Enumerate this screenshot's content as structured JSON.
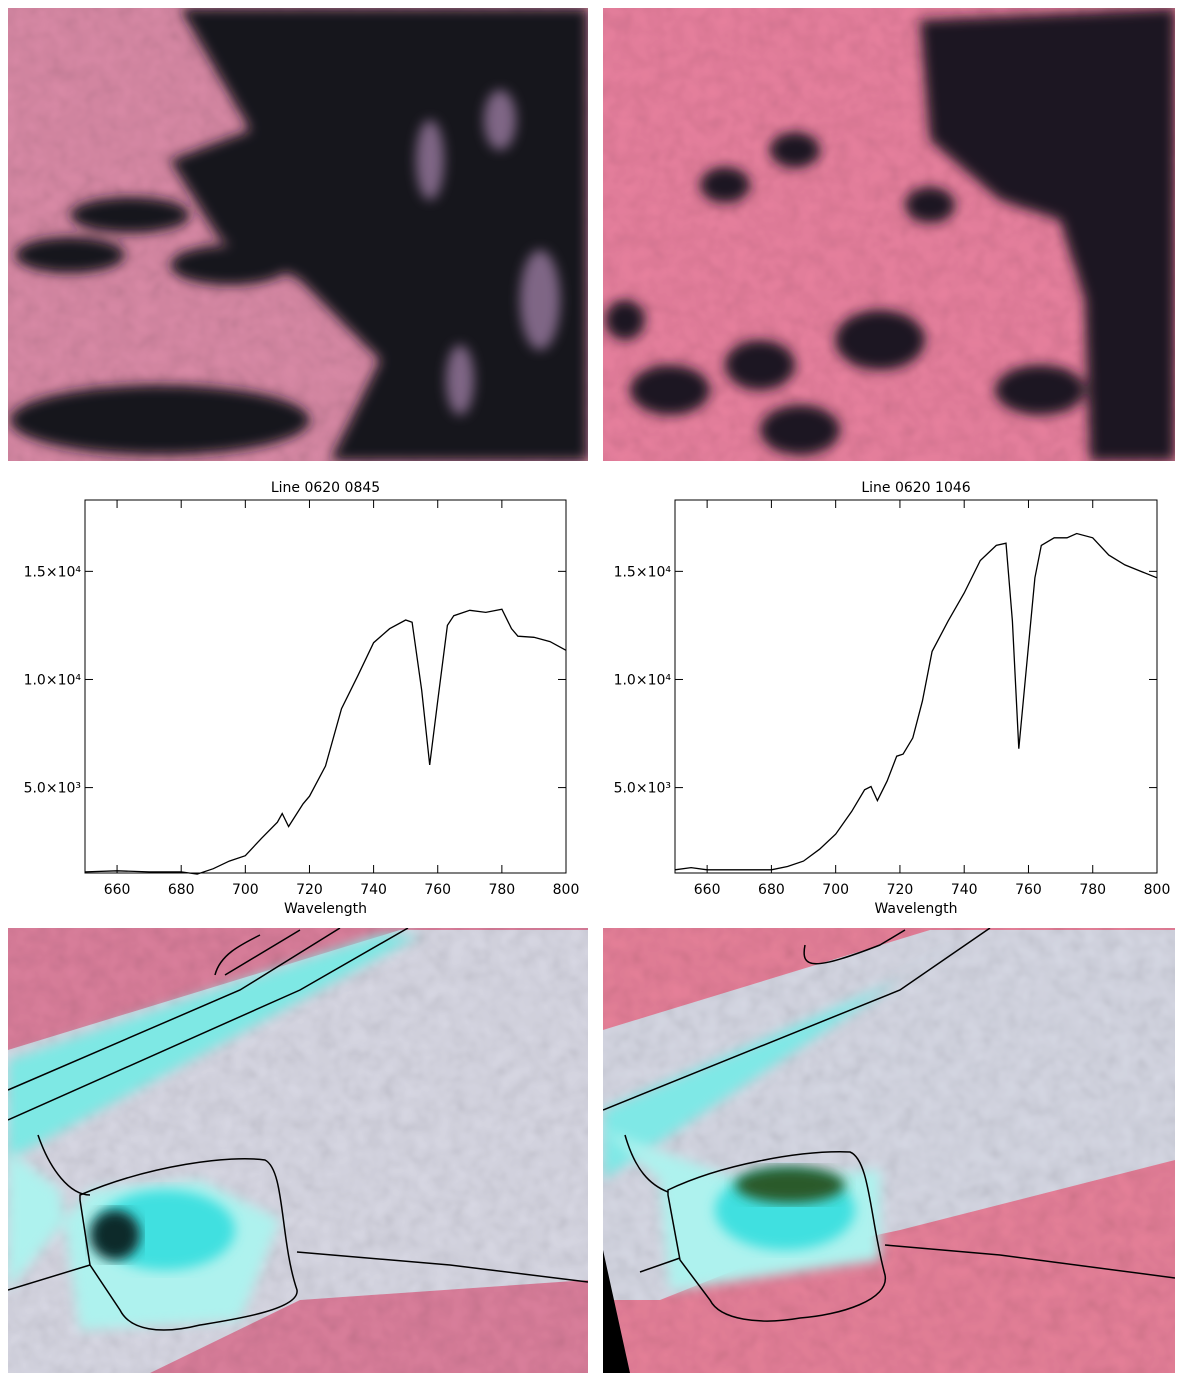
{
  "chart_data": [
    {
      "type": "line",
      "title": "Line 0620 0845",
      "x_label": "Wavelength",
      "color": "#000000",
      "x": [
        650,
        660,
        670,
        680,
        685,
        690,
        695,
        700,
        705,
        710,
        711.5,
        713.5,
        718,
        720,
        725,
        730,
        735,
        740,
        745,
        750,
        752,
        755,
        757.5,
        760,
        763,
        765,
        770,
        775,
        780,
        783,
        785,
        790,
        795,
        800
      ],
      "values": [
        1100,
        1150,
        1100,
        1100,
        1000,
        1250,
        1600,
        1850,
        2650,
        3400,
        3800,
        3200,
        4250,
        4600,
        6000,
        8650,
        10150,
        11700,
        12350,
        12750,
        12650,
        9500,
        6050,
        9000,
        12500,
        12950,
        13200,
        13100,
        13250,
        12350,
        12000,
        11950,
        11750,
        11350
      ],
      "xlim": [
        650,
        800
      ],
      "xticks": [
        660,
        680,
        700,
        720,
        740,
        760,
        780,
        800
      ],
      "ylim": [
        1050,
        18300
      ],
      "yticks": [
        {
          "value": 5000,
          "label": "5.0×10³"
        },
        {
          "value": 10000,
          "label": "1.0×10⁴"
        },
        {
          "value": 15000,
          "label": "1.5×10⁴"
        }
      ]
    },
    {
      "type": "line",
      "title": "Line 0620 1046",
      "x_label": "Wavelength",
      "color": "#000000",
      "x": [
        650,
        655,
        660,
        670,
        680,
        685,
        690,
        695,
        700,
        705,
        709,
        711,
        713,
        716,
        719,
        721,
        724,
        727,
        730,
        735,
        740,
        745,
        750,
        753,
        755,
        757,
        759,
        762,
        764,
        768,
        772,
        775,
        780,
        785,
        790,
        795,
        800
      ],
      "values": [
        1200,
        1300,
        1200,
        1200,
        1200,
        1350,
        1600,
        2150,
        2850,
        3900,
        4900,
        5050,
        4400,
        5300,
        6450,
        6550,
        7300,
        9000,
        11300,
        12700,
        14000,
        15500,
        16200,
        16300,
        12700,
        6800,
        10000,
        14700,
        16200,
        16550,
        16550,
        16750,
        16550,
        15750,
        15300,
        15000,
        14700
      ],
      "xlim": [
        650,
        800
      ],
      "xticks": [
        660,
        680,
        700,
        720,
        740,
        760,
        780,
        800
      ],
      "ylim": [
        1050,
        18300
      ],
      "yticks": [
        {
          "value": 5000,
          "label": "5.0×10³"
        },
        {
          "value": 10000,
          "label": "1.0×10⁴"
        },
        {
          "value": 15000,
          "label": "1.5×10⁴"
        }
      ]
    }
  ]
}
